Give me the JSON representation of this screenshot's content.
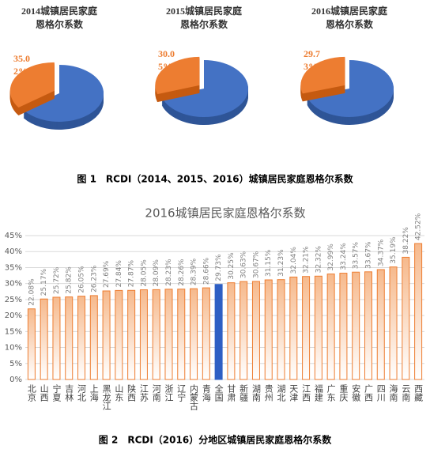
{
  "chart_data": [
    {
      "type": "pie",
      "title": "2014城镇居民家庭恩格尔系数",
      "values": [
        35.02
      ],
      "value_labels": [
        "35.02%"
      ],
      "colors": [
        "#ed7d31"
      ],
      "rest_color": "#4472c4"
    },
    {
      "type": "pie",
      "title": "2015城镇居民家庭恩格尔系数",
      "values": [
        30.05
      ],
      "value_labels": [
        "30.05%"
      ],
      "colors": [
        "#ed7d31"
      ],
      "rest_color": "#4472c4"
    },
    {
      "type": "pie",
      "title": "2016城镇居民家庭恩格尔系数",
      "values": [
        29.73
      ],
      "value_labels": [
        "29.73%"
      ],
      "colors": [
        "#ed7d31"
      ],
      "rest_color": "#4472c4"
    },
    {
      "type": "bar",
      "title": "2016城镇居民家庭恩格尔系数",
      "categories": [
        "北京",
        "山西",
        "宁夏",
        "吉林",
        "河北",
        "上海",
        "黑龙江",
        "山东",
        "陕西",
        "江苏",
        "河南",
        "浙江",
        "辽宁",
        "内蒙古",
        "青海",
        "全国",
        "甘肃",
        "新疆",
        "湖南",
        "贵州",
        "湖北",
        "天津",
        "江西",
        "福建",
        "广东",
        "重庆",
        "安徽",
        "广西",
        "四川",
        "海南",
        "云南",
        "西藏"
      ],
      "values": [
        22.08,
        25.17,
        25.72,
        25.82,
        26.05,
        26.23,
        27.69,
        27.84,
        27.87,
        28.05,
        28.09,
        28.23,
        28.26,
        28.39,
        28.66,
        29.73,
        30.25,
        30.63,
        30.67,
        31.15,
        31.23,
        32.04,
        32.21,
        32.32,
        32.99,
        33.24,
        33.57,
        33.67,
        34.37,
        35.19,
        38.22,
        42.52
      ],
      "value_labels": [
        "22.08%",
        "25.17%",
        "25.72%",
        "25.82%",
        "26.05%",
        "26.23%",
        "27.69%",
        "27.84%",
        "27.87%",
        "28.05%",
        "28.09%",
        "28.23%",
        "28.26%",
        "28.39%",
        "28.66%",
        "29.73%",
        "30.25%",
        "30.63%",
        "30.67%",
        "31.15%",
        "31.23%",
        "32.04%",
        "32.21%",
        "32.32%",
        "32.99%",
        "33.24%",
        "33.57%",
        "33.67%",
        "34.37%",
        "35.19%",
        "38.22%",
        "42.52%"
      ],
      "colors": [
        "#ed7d31",
        "#ed7d31",
        "#ed7d31",
        "#ed7d31",
        "#ed7d31",
        "#ed7d31",
        "#ed7d31",
        "#ed7d31",
        "#ed7d31",
        "#ed7d31",
        "#ed7d31",
        "#ed7d31",
        "#ed7d31",
        "#ed7d31",
        "#ed7d31",
        "#2e5fc4",
        "#ed7d31",
        "#ed7d31",
        "#ed7d31",
        "#ed7d31",
        "#ed7d31",
        "#ed7d31",
        "#ed7d31",
        "#ed7d31",
        "#ed7d31",
        "#ed7d31",
        "#ed7d31",
        "#ed7d31",
        "#ed7d31",
        "#ed7d31",
        "#ed7d31",
        "#ed7d31"
      ],
      "ylim": [
        0,
        45
      ],
      "yticks": [
        {
          "value": 0,
          "label": "0%"
        },
        {
          "value": 5,
          "label": "5%"
        },
        {
          "value": 10,
          "label": "10%"
        },
        {
          "value": 15,
          "label": "15%"
        },
        {
          "value": 20,
          "label": "20%"
        },
        {
          "value": 25,
          "label": "25%"
        },
        {
          "value": 30,
          "label": "30%"
        },
        {
          "value": 35,
          "label": "35%"
        },
        {
          "value": 40,
          "label": "40%"
        },
        {
          "value": 45,
          "label": "45%"
        }
      ],
      "grid": true
    }
  ],
  "captions": [
    "图 1　RCDI（2014、2015、2016）城镇居民家庭恩格尔系数",
    "图 2　RCDI（2016）分地区城镇居民家庭恩格尔系数"
  ]
}
